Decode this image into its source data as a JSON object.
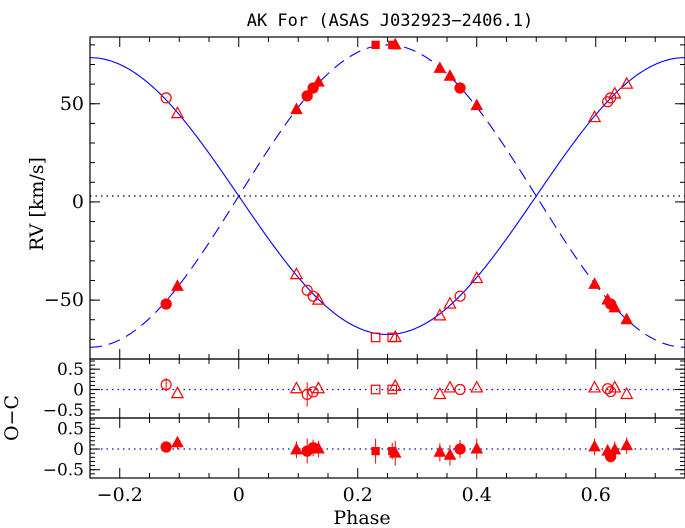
{
  "chart_data": {
    "type": "scatter",
    "title": "AK For (ASAS J032923−2406.1)",
    "xlabel": "Phase",
    "ylabel": "RV [km/s]",
    "resid_label": "O−C",
    "xlim": [
      -0.25,
      0.75
    ],
    "x_ticks": [
      -0.2,
      0,
      0.2,
      0.4,
      0.6
    ],
    "x_tick_labels": [
      "−0.2",
      "0",
      "0.2",
      "0.4",
      "0.6"
    ],
    "main_panel": {
      "ylim": [
        -80,
        84
      ],
      "y_ticks": [
        -50,
        0,
        50
      ],
      "y_tick_labels": [
        "−50",
        "0",
        "50"
      ],
      "gamma": 3,
      "model_primary": {
        "style": "solid",
        "gamma": 3,
        "K": 70.5,
        "max_phase": 0.75
      },
      "model_secondary": {
        "style": "dashed",
        "gamma": 3,
        "K": 77,
        "max_phase": 0.25
      },
      "primary_points": [
        {
          "x": -0.122,
          "y": 53,
          "m": "circle-open"
        },
        {
          "x": -0.103,
          "y": 45,
          "m": "triangle-open"
        },
        {
          "x": 0.097,
          "y": -37,
          "m": "triangle-open"
        },
        {
          "x": 0.115,
          "y": -45,
          "m": "circle-open"
        },
        {
          "x": 0.125,
          "y": -48,
          "m": "circle-open"
        },
        {
          "x": 0.134,
          "y": -50,
          "m": "triangle-open"
        },
        {
          "x": 0.23,
          "y": -69,
          "m": "square-open"
        },
        {
          "x": 0.258,
          "y": -69,
          "m": "square-open"
        },
        {
          "x": 0.263,
          "y": -69,
          "m": "triangle-open"
        },
        {
          "x": 0.338,
          "y": -58,
          "m": "triangle-open"
        },
        {
          "x": 0.355,
          "y": -52,
          "m": "triangle-open"
        },
        {
          "x": 0.372,
          "y": -48,
          "m": "circle-open"
        },
        {
          "x": 0.4,
          "y": -39,
          "m": "triangle-open"
        },
        {
          "x": 0.598,
          "y": 43,
          "m": "triangle-open"
        },
        {
          "x": 0.62,
          "y": 51,
          "m": "circle-open"
        },
        {
          "x": 0.625,
          "y": 53,
          "m": "circle-open"
        },
        {
          "x": 0.632,
          "y": 55,
          "m": "triangle-open"
        },
        {
          "x": 0.652,
          "y": 60,
          "m": "triangle-open"
        }
      ],
      "secondary_points": [
        {
          "x": -0.122,
          "y": -52,
          "m": "circle-filled"
        },
        {
          "x": -0.103,
          "y": -43,
          "m": "triangle-filled"
        },
        {
          "x": 0.097,
          "y": 47,
          "m": "triangle-filled"
        },
        {
          "x": 0.115,
          "y": 54,
          "m": "circle-filled"
        },
        {
          "x": 0.125,
          "y": 58,
          "m": "circle-filled"
        },
        {
          "x": 0.134,
          "y": 61,
          "m": "triangle-filled"
        },
        {
          "x": 0.23,
          "y": 80,
          "m": "square-filled"
        },
        {
          "x": 0.258,
          "y": 80,
          "m": "square-filled"
        },
        {
          "x": 0.263,
          "y": 80,
          "m": "triangle-filled"
        },
        {
          "x": 0.338,
          "y": 68,
          "m": "triangle-filled"
        },
        {
          "x": 0.355,
          "y": 64,
          "m": "triangle-filled"
        },
        {
          "x": 0.372,
          "y": 58,
          "m": "circle-filled"
        },
        {
          "x": 0.4,
          "y": 49,
          "m": "triangle-filled"
        },
        {
          "x": 0.598,
          "y": -42,
          "m": "triangle-filled"
        },
        {
          "x": 0.62,
          "y": -50,
          "m": "triangle-filled"
        },
        {
          "x": 0.625,
          "y": -52,
          "m": "circle-filled"
        },
        {
          "x": 0.632,
          "y": -54,
          "m": "triangle-filled"
        },
        {
          "x": 0.652,
          "y": -60,
          "m": "triangle-filled"
        }
      ]
    },
    "residual_primary": {
      "ylim": [
        -0.7,
        0.75
      ],
      "y_ticks": [
        -0.5,
        0,
        0.5
      ],
      "y_tick_labels": [
        "−0.5",
        "0",
        "0.5"
      ],
      "points": [
        {
          "x": -0.122,
          "y": 0.12,
          "e": 0.16,
          "m": "circle-open"
        },
        {
          "x": -0.103,
          "y": -0.1,
          "e": 0.0,
          "m": "triangle-open"
        },
        {
          "x": 0.097,
          "y": 0.02,
          "e": 0.0,
          "m": "triangle-open"
        },
        {
          "x": 0.115,
          "y": -0.12,
          "e": 0.3,
          "m": "circle-open"
        },
        {
          "x": 0.125,
          "y": -0.06,
          "e": 0.0,
          "m": "circle-open"
        },
        {
          "x": 0.134,
          "y": 0.02,
          "e": 0.0,
          "m": "triangle-open"
        },
        {
          "x": 0.23,
          "y": 0.0,
          "e": 0.0,
          "m": "square-open"
        },
        {
          "x": 0.258,
          "y": 0.0,
          "e": 0.0,
          "m": "square-open"
        },
        {
          "x": 0.263,
          "y": 0.08,
          "e": 0.0,
          "m": "triangle-open"
        },
        {
          "x": 0.338,
          "y": -0.12,
          "e": 0.0,
          "m": "triangle-open"
        },
        {
          "x": 0.355,
          "y": 0.04,
          "e": 0.0,
          "m": "triangle-open"
        },
        {
          "x": 0.372,
          "y": 0.0,
          "e": 0.0,
          "m": "circle-open"
        },
        {
          "x": 0.4,
          "y": 0.04,
          "e": 0.0,
          "m": "triangle-open"
        },
        {
          "x": 0.598,
          "y": 0.04,
          "e": 0.0,
          "m": "triangle-open"
        },
        {
          "x": 0.62,
          "y": 0.02,
          "e": 0.0,
          "m": "circle-open"
        },
        {
          "x": 0.625,
          "y": -0.05,
          "e": 0.0,
          "m": "circle-open"
        },
        {
          "x": 0.632,
          "y": 0.04,
          "e": 0.0,
          "m": "triangle-open"
        },
        {
          "x": 0.652,
          "y": -0.12,
          "e": 0.0,
          "m": "triangle-open"
        }
      ]
    },
    "residual_secondary": {
      "ylim": [
        -0.7,
        0.75
      ],
      "y_ticks": [
        -0.5,
        0,
        0.5
      ],
      "y_tick_labels": [
        "−0.5",
        "0",
        "0.5"
      ],
      "points": [
        {
          "x": -0.122,
          "y": 0.05,
          "e": 0.12,
          "m": "circle-filled"
        },
        {
          "x": -0.103,
          "y": 0.15,
          "e": 0.15,
          "m": "triangle-filled"
        },
        {
          "x": 0.097,
          "y": -0.02,
          "e": 0.2,
          "m": "triangle-filled"
        },
        {
          "x": 0.115,
          "y": -0.05,
          "e": 0.3,
          "m": "circle-filled"
        },
        {
          "x": 0.125,
          "y": 0.03,
          "e": 0.2,
          "m": "circle-filled"
        },
        {
          "x": 0.134,
          "y": 0.0,
          "e": 0.2,
          "m": "triangle-filled"
        },
        {
          "x": 0.23,
          "y": -0.05,
          "e": 0.3,
          "m": "square-filled"
        },
        {
          "x": 0.258,
          "y": -0.05,
          "e": 0.2,
          "m": "square-filled"
        },
        {
          "x": 0.263,
          "y": -0.1,
          "e": 0.3,
          "m": "triangle-filled"
        },
        {
          "x": 0.338,
          "y": -0.08,
          "e": 0.22,
          "m": "triangle-filled"
        },
        {
          "x": 0.355,
          "y": -0.15,
          "e": 0.25,
          "m": "triangle-filled"
        },
        {
          "x": 0.372,
          "y": 0.0,
          "e": 0.22,
          "m": "circle-filled"
        },
        {
          "x": 0.4,
          "y": 0.0,
          "e": 0.25,
          "m": "triangle-filled"
        },
        {
          "x": 0.598,
          "y": 0.05,
          "e": 0.2,
          "m": "triangle-filled"
        },
        {
          "x": 0.62,
          "y": -0.05,
          "e": 0.15,
          "m": "triangle-filled"
        },
        {
          "x": 0.625,
          "y": -0.18,
          "e": 0.15,
          "m": "circle-filled"
        },
        {
          "x": 0.632,
          "y": -0.02,
          "e": 0.2,
          "m": "triangle-filled"
        },
        {
          "x": 0.652,
          "y": 0.08,
          "e": 0.2,
          "m": "triangle-filled"
        }
      ]
    },
    "colors": {
      "points": "#ff0000",
      "model": "#0000ff",
      "axes": "#000000",
      "zero_line": "#0000ff"
    }
  }
}
